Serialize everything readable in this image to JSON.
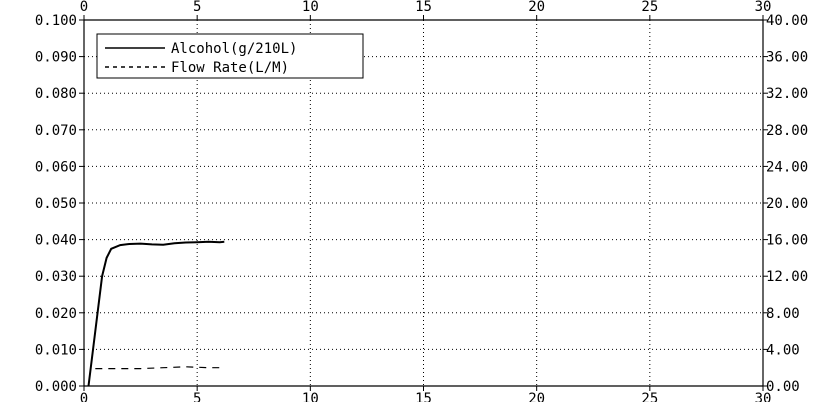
{
  "chart_data": {
    "type": "line",
    "title": "",
    "xlabel": "",
    "ylabel": "",
    "xlim": [
      0,
      30
    ],
    "ylim": [
      0.0,
      0.1
    ],
    "y2lim": [
      0.0,
      40.0
    ],
    "grid": true,
    "legend_position": "top-left",
    "x_ticks": [
      "0",
      "5",
      "10",
      "15",
      "20",
      "25",
      "30"
    ],
    "y_ticks": [
      "0.000",
      "0.010",
      "0.020",
      "0.030",
      "0.040",
      "0.050",
      "0.060",
      "0.070",
      "0.080",
      "0.090",
      "0.100"
    ],
    "y2_ticks": [
      "0.00",
      "4.00",
      "8.00",
      "12.00",
      "16.00",
      "20.00",
      "24.00",
      "28.00",
      "32.00",
      "36.00",
      "40.00"
    ],
    "series": [
      {
        "name": "Alcohol(g/210L)",
        "axis": "left",
        "style": "solid",
        "color": "#000000",
        "x": [
          0.2,
          0.5,
          0.8,
          1.0,
          1.2,
          1.6,
          2.0,
          2.5,
          3.0,
          3.5,
          4.0,
          4.5,
          5.0,
          5.5,
          6.0,
          6.2
        ],
        "y": [
          0.0,
          0.015,
          0.03,
          0.035,
          0.0375,
          0.0385,
          0.0388,
          0.0389,
          0.0387,
          0.0386,
          0.039,
          0.0392,
          0.0393,
          0.0394,
          0.0393,
          0.0394
        ]
      },
      {
        "name": "Flow Rate(L/M)",
        "axis": "right",
        "style": "dashed",
        "color": "#000000",
        "x": [
          0.5,
          1.5,
          2.5,
          3.5,
          4.5,
          5.5,
          6.2
        ],
        "y": [
          1.9,
          1.9,
          1.9,
          2.0,
          2.1,
          2.0,
          2.0
        ]
      }
    ]
  }
}
